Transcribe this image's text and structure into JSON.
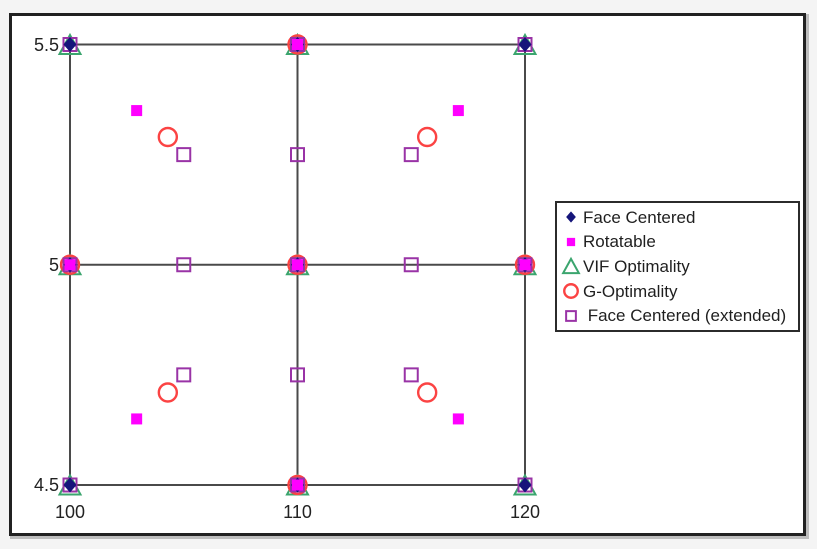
{
  "chart_data": {
    "type": "scatter",
    "title": "",
    "xlabel": "",
    "ylabel": "",
    "xlim": [
      100,
      120
    ],
    "ylim": [
      4.5,
      5.5
    ],
    "grid": true,
    "legend_position": "right-inside",
    "x_ticks": [
      {
        "value": 100,
        "label": "100"
      },
      {
        "value": 110,
        "label": "110"
      },
      {
        "value": 120,
        "label": "120"
      }
    ],
    "y_ticks": [
      {
        "value": 4.5,
        "label": "4.5"
      },
      {
        "value": 5,
        "label": "5"
      },
      {
        "value": 5.5,
        "label": "5.5"
      }
    ],
    "series": [
      {
        "name": "Face Centered",
        "legend_label": "Face Centered",
        "marker": "filled-diamond",
        "color": "#15157A",
        "z": 4,
        "points": [
          [
            100,
            5.5
          ],
          [
            110,
            5.5
          ],
          [
            120,
            5.5
          ],
          [
            100,
            5
          ],
          [
            110,
            5
          ],
          [
            120,
            5
          ],
          [
            100,
            4.5
          ],
          [
            110,
            4.5
          ],
          [
            120,
            4.5
          ]
        ]
      },
      {
        "name": "Rotatable",
        "legend_label": "Rotatable",
        "marker": "filled-square",
        "color": "#FF00FF",
        "z": 5,
        "points": [
          [
            110,
            5.5
          ],
          [
            100,
            5
          ],
          [
            110,
            5
          ],
          [
            120,
            5
          ],
          [
            110,
            4.5
          ],
          [
            102.93,
            5.35
          ],
          [
            117.07,
            5.35
          ],
          [
            102.93,
            4.65
          ],
          [
            117.07,
            4.65
          ]
        ]
      },
      {
        "name": "VIF Optimality",
        "legend_label": "VIF Optimality",
        "marker": "open-triangle",
        "color": "#3BA56E",
        "z": 1,
        "points": [
          [
            100,
            5.5
          ],
          [
            110,
            5.5
          ],
          [
            120,
            5.5
          ],
          [
            100,
            5
          ],
          [
            110,
            5
          ],
          [
            120,
            5
          ],
          [
            100,
            4.5
          ],
          [
            110,
            4.5
          ],
          [
            120,
            4.5
          ]
        ]
      },
      {
        "name": "G-Optimality",
        "legend_label": "G-Optimality",
        "marker": "open-circle",
        "color": "#FB4343",
        "z": 2,
        "points": [
          [
            110,
            5.5
          ],
          [
            100,
            5
          ],
          [
            110,
            5
          ],
          [
            120,
            5
          ],
          [
            110,
            4.5
          ],
          [
            104.3,
            5.29
          ],
          [
            115.7,
            5.29
          ],
          [
            104.3,
            4.71
          ],
          [
            115.7,
            4.71
          ]
        ]
      },
      {
        "name": "Face Centered (extended)",
        "legend_label": " Face Centered (extended)",
        "marker": "open-square",
        "color": "#9933A6",
        "z": 3,
        "points": [
          [
            100,
            5.5
          ],
          [
            110,
            5.5
          ],
          [
            120,
            5.5
          ],
          [
            100,
            5
          ],
          [
            110,
            5
          ],
          [
            120,
            5
          ],
          [
            100,
            4.5
          ],
          [
            110,
            4.5
          ],
          [
            120,
            4.5
          ],
          [
            105,
            5.25
          ],
          [
            110,
            5.25
          ],
          [
            115,
            5.25
          ],
          [
            105,
            5
          ],
          [
            115,
            5
          ],
          [
            105,
            4.75
          ],
          [
            110,
            4.75
          ],
          [
            115,
            4.75
          ]
        ]
      }
    ],
    "colors": {
      "grid": "#4A4A4A",
      "frame": "#212121",
      "tick_text": "#222222",
      "legend_border": "#2B2B2B",
      "legend_text": "#1F1F1F",
      "background": "#FFFFFF",
      "page_background": "#F4F4F4"
    }
  }
}
